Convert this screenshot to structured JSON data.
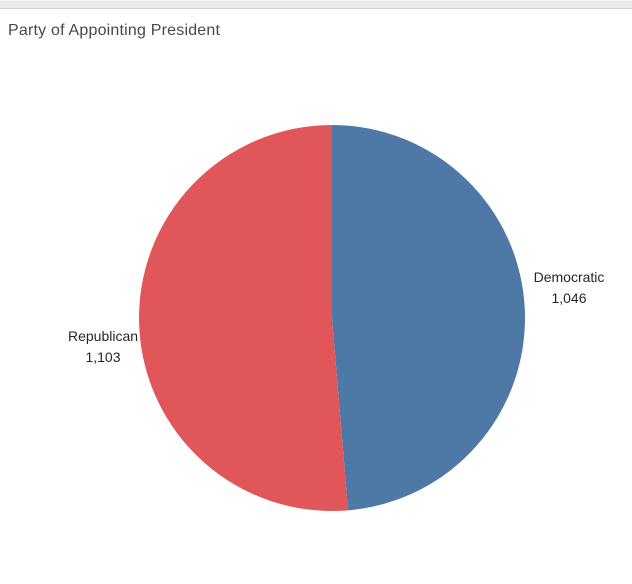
{
  "header": {
    "title": "Party of Appointing President"
  },
  "chart_data": {
    "type": "pie",
    "title": "Party of Appointing President",
    "start_at": "12-o-clock",
    "direction": "clockwise",
    "legend_position": "none",
    "label_style": "outside-two-line",
    "slices": [
      {
        "label": "Democratic",
        "value": 1046,
        "display_value": "1,046",
        "color": "#4e79a7"
      },
      {
        "label": "Republican",
        "value": 1103,
        "display_value": "1,103",
        "color": "#e15759"
      }
    ]
  }
}
